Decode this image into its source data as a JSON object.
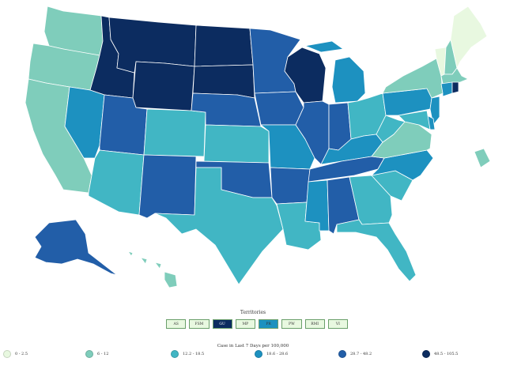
{
  "colors": {
    "c1": "#e8f8e0",
    "c2": "#7fcdbb",
    "c3": "#41b6c4",
    "c4": "#1d91c0",
    "c5": "#225ea8",
    "c6": "#0c2c60"
  },
  "territories": {
    "title": "Territories",
    "items": [
      {
        "label": "AS",
        "color": "#e8f8e0"
      },
      {
        "label": "FSM",
        "color": "#e8f8e0"
      },
      {
        "label": "GU",
        "color": "#0c2c60"
      },
      {
        "label": "MP",
        "color": "#e8f8e0"
      },
      {
        "label": "PR",
        "color": "#1d91c0"
      },
      {
        "label": "PW",
        "color": "#e8f8e0"
      },
      {
        "label": "RMI",
        "color": "#e8f8e0"
      },
      {
        "label": "VI",
        "color": "#e8f8e0"
      }
    ]
  },
  "legend": {
    "title": "Case in Last 7 Days per 100,000",
    "items": [
      {
        "label": "0 - 2.5",
        "color": "#e8f8e0"
      },
      {
        "label": "6 - 12",
        "color": "#7fcdbb"
      },
      {
        "label": "12.2 - 18.5",
        "color": "#41b6c4"
      },
      {
        "label": "18.6 - 28.6",
        "color": "#1d91c0"
      },
      {
        "label": "28.7 - 48.2",
        "color": "#225ea8"
      },
      {
        "label": "48.5 - 105.5",
        "color": "#0c2c60"
      }
    ]
  },
  "states": [
    {
      "code": "WA",
      "cls": "c2"
    },
    {
      "code": "OR",
      "cls": "c2"
    },
    {
      "code": "CA",
      "cls": "c2"
    },
    {
      "code": "ID",
      "cls": "c6"
    },
    {
      "code": "NV",
      "cls": "c4"
    },
    {
      "code": "MT",
      "cls": "c6"
    },
    {
      "code": "WY",
      "cls": "c6"
    },
    {
      "code": "UT",
      "cls": "c5"
    },
    {
      "code": "AZ",
      "cls": "c3"
    },
    {
      "code": "CO",
      "cls": "c3"
    },
    {
      "code": "NM",
      "cls": "c5"
    },
    {
      "code": "ND",
      "cls": "c6"
    },
    {
      "code": "SD",
      "cls": "c6"
    },
    {
      "code": "NE",
      "cls": "c5"
    },
    {
      "code": "KS",
      "cls": "c3"
    },
    {
      "code": "OK",
      "cls": "c5"
    },
    {
      "code": "TX",
      "cls": "c3"
    },
    {
      "code": "MN",
      "cls": "c5"
    },
    {
      "code": "IA",
      "cls": "c5"
    },
    {
      "code": "MO",
      "cls": "c4"
    },
    {
      "code": "AR",
      "cls": "c5"
    },
    {
      "code": "LA",
      "cls": "c3"
    },
    {
      "code": "WI",
      "cls": "c6"
    },
    {
      "code": "IL",
      "cls": "c5"
    },
    {
      "code": "MI",
      "cls": "c4"
    },
    {
      "code": "IN",
      "cls": "c5"
    },
    {
      "code": "OH",
      "cls": "c3"
    },
    {
      "code": "KY",
      "cls": "c4"
    },
    {
      "code": "TN",
      "cls": "c5"
    },
    {
      "code": "MS",
      "cls": "c4"
    },
    {
      "code": "AL",
      "cls": "c5"
    },
    {
      "code": "GA",
      "cls": "c3"
    },
    {
      "code": "FL",
      "cls": "c3"
    },
    {
      "code": "SC",
      "cls": "c3"
    },
    {
      "code": "NC",
      "cls": "c4"
    },
    {
      "code": "VA",
      "cls": "c2"
    },
    {
      "code": "WV",
      "cls": "c3"
    },
    {
      "code": "PA",
      "cls": "c4"
    },
    {
      "code": "NY",
      "cls": "c2"
    },
    {
      "code": "VT",
      "cls": "c1"
    },
    {
      "code": "NH",
      "cls": "c2"
    },
    {
      "code": "ME",
      "cls": "c1"
    },
    {
      "code": "MA",
      "cls": "c2"
    },
    {
      "code": "RI",
      "cls": "c6"
    },
    {
      "code": "CT",
      "cls": "c4"
    },
    {
      "code": "NJ",
      "cls": "c4"
    },
    {
      "code": "DE",
      "cls": "c4"
    },
    {
      "code": "MD",
      "cls": "c3"
    },
    {
      "code": "DC",
      "cls": "c2"
    },
    {
      "code": "AK",
      "cls": "c5"
    },
    {
      "code": "HI",
      "cls": "c2"
    }
  ]
}
